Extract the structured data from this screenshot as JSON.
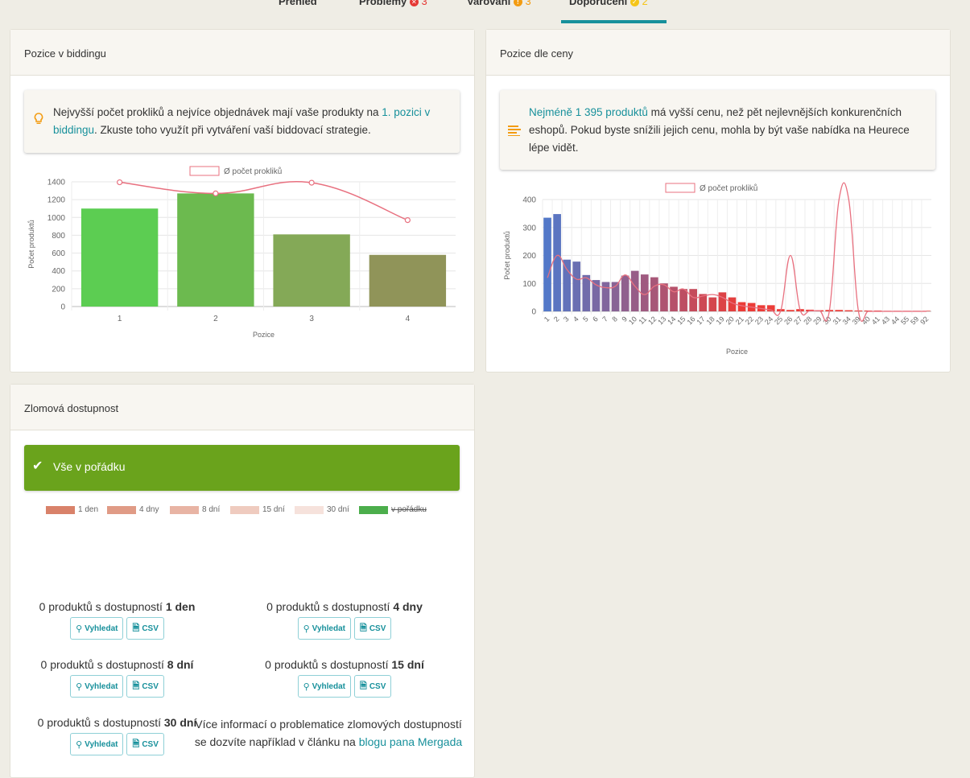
{
  "tabs": {
    "overview": "Přehled",
    "problems": "Problémy",
    "problems_count": "3",
    "warnings": "Varování",
    "warnings_count": "3",
    "recommendations": "Doporučení",
    "recommendations_count": "2"
  },
  "bidding": {
    "title": "Pozice v biddingu",
    "tip_text_1": "Nejvyšší počet prokliků a nejvíce objednávek mají vaše produkty na ",
    "tip_link": "1. pozici v biddingu",
    "tip_text_2": ". Zkuste toho využít při vytváření vaší biddovací strategie."
  },
  "price": {
    "title": "Pozice dle ceny",
    "tip_link": "Nejméně 1 395 produktů",
    "tip_text": " má vyšší cenu, než pět nejlevnějších konkurenčních eshopů. Pokud byste snížili jejich cenu, mohla by být vaše nabídka na Heurece lépe vidět."
  },
  "availability": {
    "title": "Zlomová dostupnost",
    "status": "Vše v pořádku",
    "legend": [
      {
        "label": "1 den",
        "color": "#d9826a"
      },
      {
        "label": "4 dny",
        "color": "#e09b86"
      },
      {
        "label": "8 dní",
        "color": "#e8b4a4"
      },
      {
        "label": "15 dní",
        "color": "#efcbbf"
      },
      {
        "label": "30 dní",
        "color": "#f6e2dc"
      },
      {
        "label": "v pořádku",
        "color": "#4cae4c"
      }
    ],
    "items": [
      {
        "prefix": "0 produktů s dostupností ",
        "bold": "1 den"
      },
      {
        "prefix": "0 produktů s dostupností ",
        "bold": "4 dny"
      },
      {
        "prefix": "0 produktů s dostupností ",
        "bold": "8 dní"
      },
      {
        "prefix": "0 produktů s dostupností ",
        "bold": "15 dní"
      },
      {
        "prefix": "0 produktů s dostupností ",
        "bold": "30 dní"
      }
    ],
    "search_label": "Vyhledat",
    "csv_label": "CSV",
    "more_info_text": "Více informací o problematice zlomových dostupností se dozvíte například v článku na ",
    "more_info_link": "blogu pana Mergada"
  },
  "chart_data": [
    {
      "type": "bar",
      "title": "",
      "legend": "Ø počet prokliků",
      "xlabel": "Pozice",
      "ylabel": "Počet produktů",
      "categories": [
        "1",
        "2",
        "3",
        "4"
      ],
      "values": [
        1100,
        1270,
        810,
        580
      ],
      "bar_colors": [
        "#5ccd52",
        "#6cba4f",
        "#84a957",
        "#909459"
      ],
      "line_values": [
        1395,
        1270,
        1390,
        970
      ],
      "line_color": "#e8707f",
      "ylim": [
        0,
        1400
      ],
      "yticks": [
        0,
        200,
        400,
        600,
        800,
        1000,
        1200,
        1400
      ]
    },
    {
      "type": "bar",
      "title": "",
      "legend": "Ø počet prokliků",
      "xlabel": "Pozice",
      "ylabel": "Počet produktů",
      "categories": [
        "1",
        "2",
        "3",
        "4",
        "5",
        "6",
        "7",
        "8",
        "9",
        "10",
        "11",
        "12",
        "13",
        "14",
        "15",
        "16",
        "17",
        "18",
        "19",
        "20",
        "21",
        "22",
        "23",
        "24",
        "25",
        "26",
        "27",
        "28",
        "29",
        "30",
        "31",
        "34",
        "39",
        "40",
        "41",
        "43",
        "44",
        "55",
        "59",
        "92"
      ],
      "values": [
        335,
        348,
        185,
        178,
        130,
        112,
        105,
        105,
        128,
        145,
        132,
        122,
        100,
        88,
        80,
        80,
        62,
        50,
        68,
        50,
        33,
        30,
        22,
        22,
        8,
        5,
        8,
        6,
        4,
        5,
        5,
        4,
        3,
        3,
        3,
        2,
        2,
        2,
        2,
        2
      ],
      "line_values": [
        120,
        200,
        150,
        115,
        120,
        95,
        85,
        90,
        130,
        90,
        60,
        90,
        95,
        70,
        80,
        50,
        55,
        60,
        50,
        30,
        20,
        15,
        10,
        5,
        2,
        200,
        5,
        2,
        2,
        0,
        400,
        400,
        0,
        0,
        0,
        0,
        0,
        0,
        0,
        0
      ],
      "line_color": "#e8707f",
      "ylim": [
        0,
        400
      ],
      "yticks": [
        0,
        100,
        200,
        300,
        400
      ]
    }
  ]
}
